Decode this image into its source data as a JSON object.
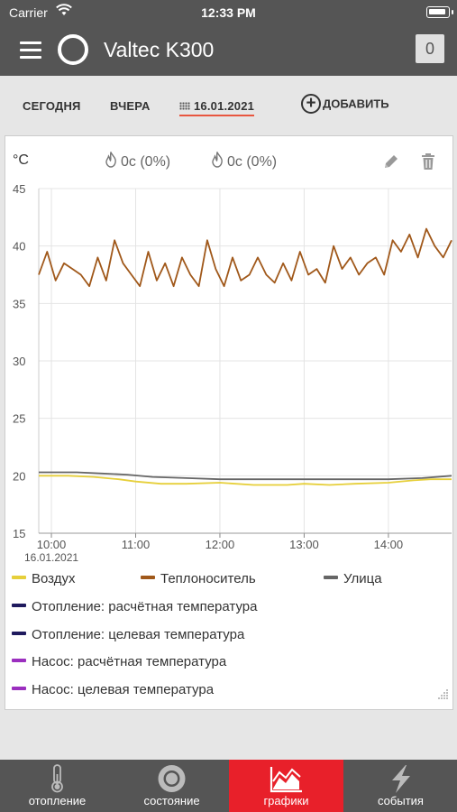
{
  "status_bar": {
    "carrier": "Carrier",
    "time": "12:33 PM"
  },
  "header": {
    "title": "Valtec K300",
    "counter": "0"
  },
  "tabs": {
    "today": "СЕГОДНЯ",
    "yesterday": "ВЧЕРА",
    "date": "16.01.2021",
    "add": "ДОБАВИТЬ"
  },
  "card": {
    "unit": "°C",
    "stat1": "0с (0%)",
    "stat2": "0с (0%)"
  },
  "chart_data": {
    "type": "line",
    "ylim": [
      15,
      45
    ],
    "yticks": [
      "45",
      "40",
      "35",
      "30",
      "25",
      "20",
      "15"
    ],
    "xlim": [
      9.85,
      14.75
    ],
    "xticks": [
      {
        "value": 10,
        "label": "10:00",
        "sub": "16.01.2021"
      },
      {
        "value": 11,
        "label": "11:00",
        "sub": ""
      },
      {
        "value": 12,
        "label": "12:00",
        "sub": ""
      },
      {
        "value": 13,
        "label": "13:00",
        "sub": ""
      },
      {
        "value": 14,
        "label": "14:00",
        "sub": ""
      }
    ],
    "grid": true,
    "series": [
      {
        "name": "Воздух",
        "color": "#e6cf3a",
        "x": [
          9.85,
          10.2,
          10.5,
          10.8,
          11.0,
          11.3,
          11.6,
          12.0,
          12.4,
          12.8,
          13.0,
          13.3,
          13.6,
          14.0,
          14.3,
          14.5,
          14.75
        ],
        "y": [
          20.0,
          20.0,
          19.9,
          19.7,
          19.5,
          19.3,
          19.3,
          19.4,
          19.2,
          19.2,
          19.3,
          19.2,
          19.3,
          19.4,
          19.6,
          19.7,
          19.7
        ]
      },
      {
        "name": "Теплоноситель",
        "color": "#a0581a",
        "x": [
          9.85,
          9.95,
          10.05,
          10.15,
          10.25,
          10.35,
          10.45,
          10.55,
          10.65,
          10.75,
          10.85,
          10.95,
          11.05,
          11.15,
          11.25,
          11.35,
          11.45,
          11.55,
          11.65,
          11.75,
          11.85,
          11.95,
          12.05,
          12.15,
          12.25,
          12.35,
          12.45,
          12.55,
          12.65,
          12.75,
          12.85,
          12.95,
          13.05,
          13.15,
          13.25,
          13.35,
          13.45,
          13.55,
          13.65,
          13.75,
          13.85,
          13.95,
          14.05,
          14.15,
          14.25,
          14.35,
          14.45,
          14.55,
          14.65,
          14.75
        ],
        "y": [
          37.5,
          39.5,
          37.0,
          38.5,
          38.0,
          37.5,
          36.5,
          39.0,
          37.0,
          40.5,
          38.5,
          37.5,
          36.5,
          39.5,
          37.0,
          38.5,
          36.5,
          39.0,
          37.5,
          36.5,
          40.5,
          38.0,
          36.5,
          39.0,
          37.0,
          37.5,
          39.0,
          37.5,
          36.8,
          38.5,
          37.0,
          39.5,
          37.5,
          38.0,
          36.8,
          40.0,
          38.0,
          39.0,
          37.5,
          38.5,
          39.0,
          37.5,
          40.5,
          39.5,
          41.0,
          39.0,
          41.5,
          40.0,
          39.0,
          40.5
        ]
      },
      {
        "name": "Улица",
        "color": "#666666",
        "x": [
          9.85,
          10.3,
          10.6,
          10.9,
          11.2,
          11.6,
          12.0,
          12.4,
          12.8,
          13.2,
          13.6,
          14.0,
          14.4,
          14.75
        ],
        "y": [
          20.3,
          20.3,
          20.2,
          20.1,
          19.9,
          19.8,
          19.7,
          19.7,
          19.7,
          19.7,
          19.7,
          19.7,
          19.8,
          20.0
        ]
      },
      {
        "name": "Отопление: расчётная температура",
        "color": "#1f1a5e"
      },
      {
        "name": "Отопление: целевая температура",
        "color": "#1f1a5e"
      },
      {
        "name": "Насос: расчётная температура",
        "color": "#9b2fbf"
      },
      {
        "name": "Насос: целевая температура",
        "color": "#9b2fbf"
      }
    ]
  },
  "bottom_nav": [
    {
      "label": "отопление",
      "icon": "thermometer-icon"
    },
    {
      "label": "состояние",
      "icon": "status-ring-icon"
    },
    {
      "label": "графики",
      "icon": "chart-icon"
    },
    {
      "label": "события",
      "icon": "lightning-icon"
    }
  ]
}
